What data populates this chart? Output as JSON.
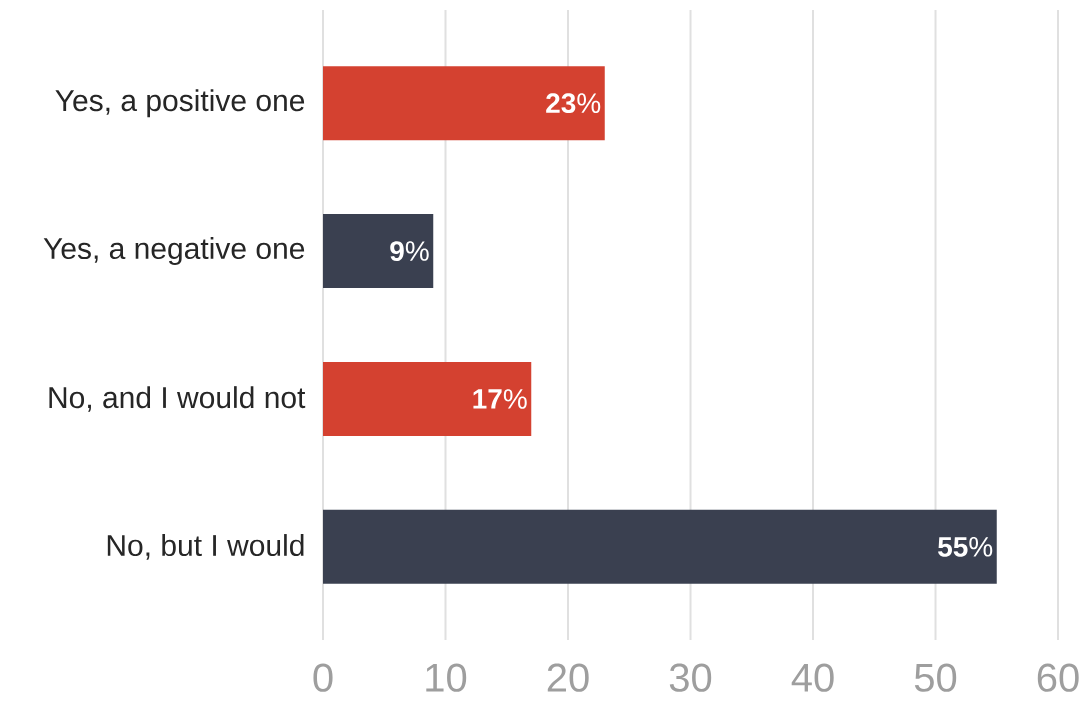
{
  "chart_data": {
    "type": "bar",
    "orientation": "horizontal",
    "categories": [
      "Yes, a positive one",
      "Yes, a negative one",
      "No, and I would not",
      "No, but I would"
    ],
    "values": [
      23,
      9,
      17,
      55
    ],
    "colors": [
      "#d44130",
      "#3a4050",
      "#d44130",
      "#3a4050"
    ],
    "value_labels": [
      "**23**%",
      "**9**%",
      "**17**%",
      "**55**%"
    ],
    "xlim": [
      0,
      60
    ],
    "xticks": [
      0,
      10,
      20,
      30,
      40,
      50,
      60
    ],
    "grid": "x"
  }
}
